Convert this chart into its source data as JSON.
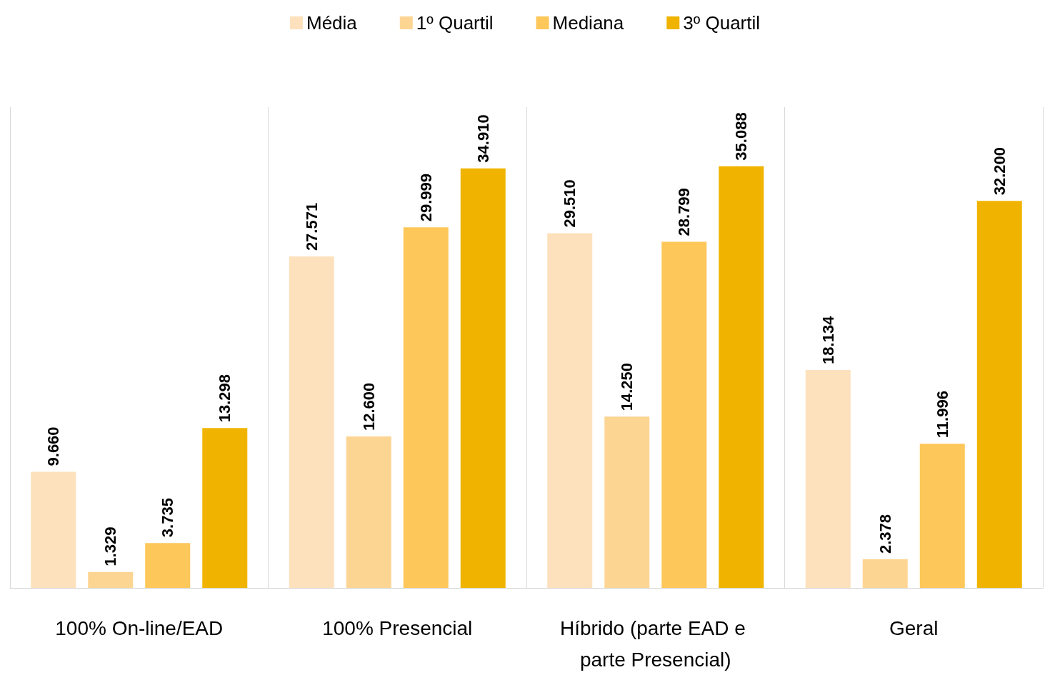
{
  "chart_data": {
    "type": "bar",
    "categories": [
      "100% On-line/EAD",
      "100% Presencial",
      "Híbrido (parte EAD e parte Presencial)",
      "Geral"
    ],
    "series": [
      {
        "name": "Média",
        "color": "#fde1bc",
        "values": [
          9660,
          27571,
          29510,
          18134
        ],
        "value_labels": [
          "9.660",
          "27.571",
          "29.510",
          "18.134"
        ]
      },
      {
        "name": "1º Quartil",
        "color": "#fdd593",
        "values": [
          1329,
          12600,
          14250,
          2378
        ],
        "value_labels": [
          "1.329",
          "12.600",
          "14.250",
          "2.378"
        ]
      },
      {
        "name": "Mediana",
        "color": "#fec75a",
        "values": [
          3735,
          29999,
          28799,
          11996
        ],
        "value_labels": [
          "3.735",
          "29.999",
          "28.799",
          "11.996"
        ]
      },
      {
        "name": "3º Quartil",
        "color": "#f0b400",
        "values": [
          13298,
          34910,
          35088,
          32200
        ],
        "value_labels": [
          "13.298",
          "34.910",
          "35.088",
          "32.200"
        ]
      }
    ],
    "legend": "top",
    "grid": "x"
  }
}
